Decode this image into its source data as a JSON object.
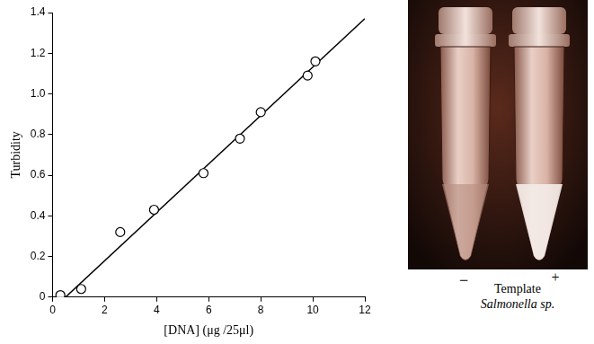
{
  "chart_data": {
    "type": "scatter",
    "xlabel": "[DNA] (μg /25μl)",
    "ylabel": "Turbidity",
    "xlim": [
      0,
      12
    ],
    "xticks": [
      0,
      2,
      4,
      6,
      8,
      10,
      12
    ],
    "ylim": [
      0,
      1.4
    ],
    "yticks": [
      0,
      0.2,
      0.4,
      0.6,
      0.8,
      {
        "value": 1,
        "label": "1.0"
      },
      1.2,
      1.4
    ],
    "grid": false,
    "series": [
      {
        "type": "scatter",
        "marker": "circle",
        "color": "#000000",
        "x": [
          0.3,
          1.1,
          2.6,
          3.9,
          5.8,
          7.2,
          8.0,
          9.8,
          10.1
        ],
        "values": [
          0.01,
          0.04,
          0.32,
          0.43,
          0.61,
          0.78,
          0.91,
          1.09,
          1.16
        ]
      },
      {
        "type": "line",
        "line_style": "solid",
        "color": "#000000",
        "x": [
          0.5,
          12
        ],
        "values": [
          0,
          1.37
        ]
      }
    ]
  },
  "photo": {
    "signs": [
      "−",
      "+"
    ],
    "caption": "Template",
    "organism": "Salmonella sp."
  }
}
